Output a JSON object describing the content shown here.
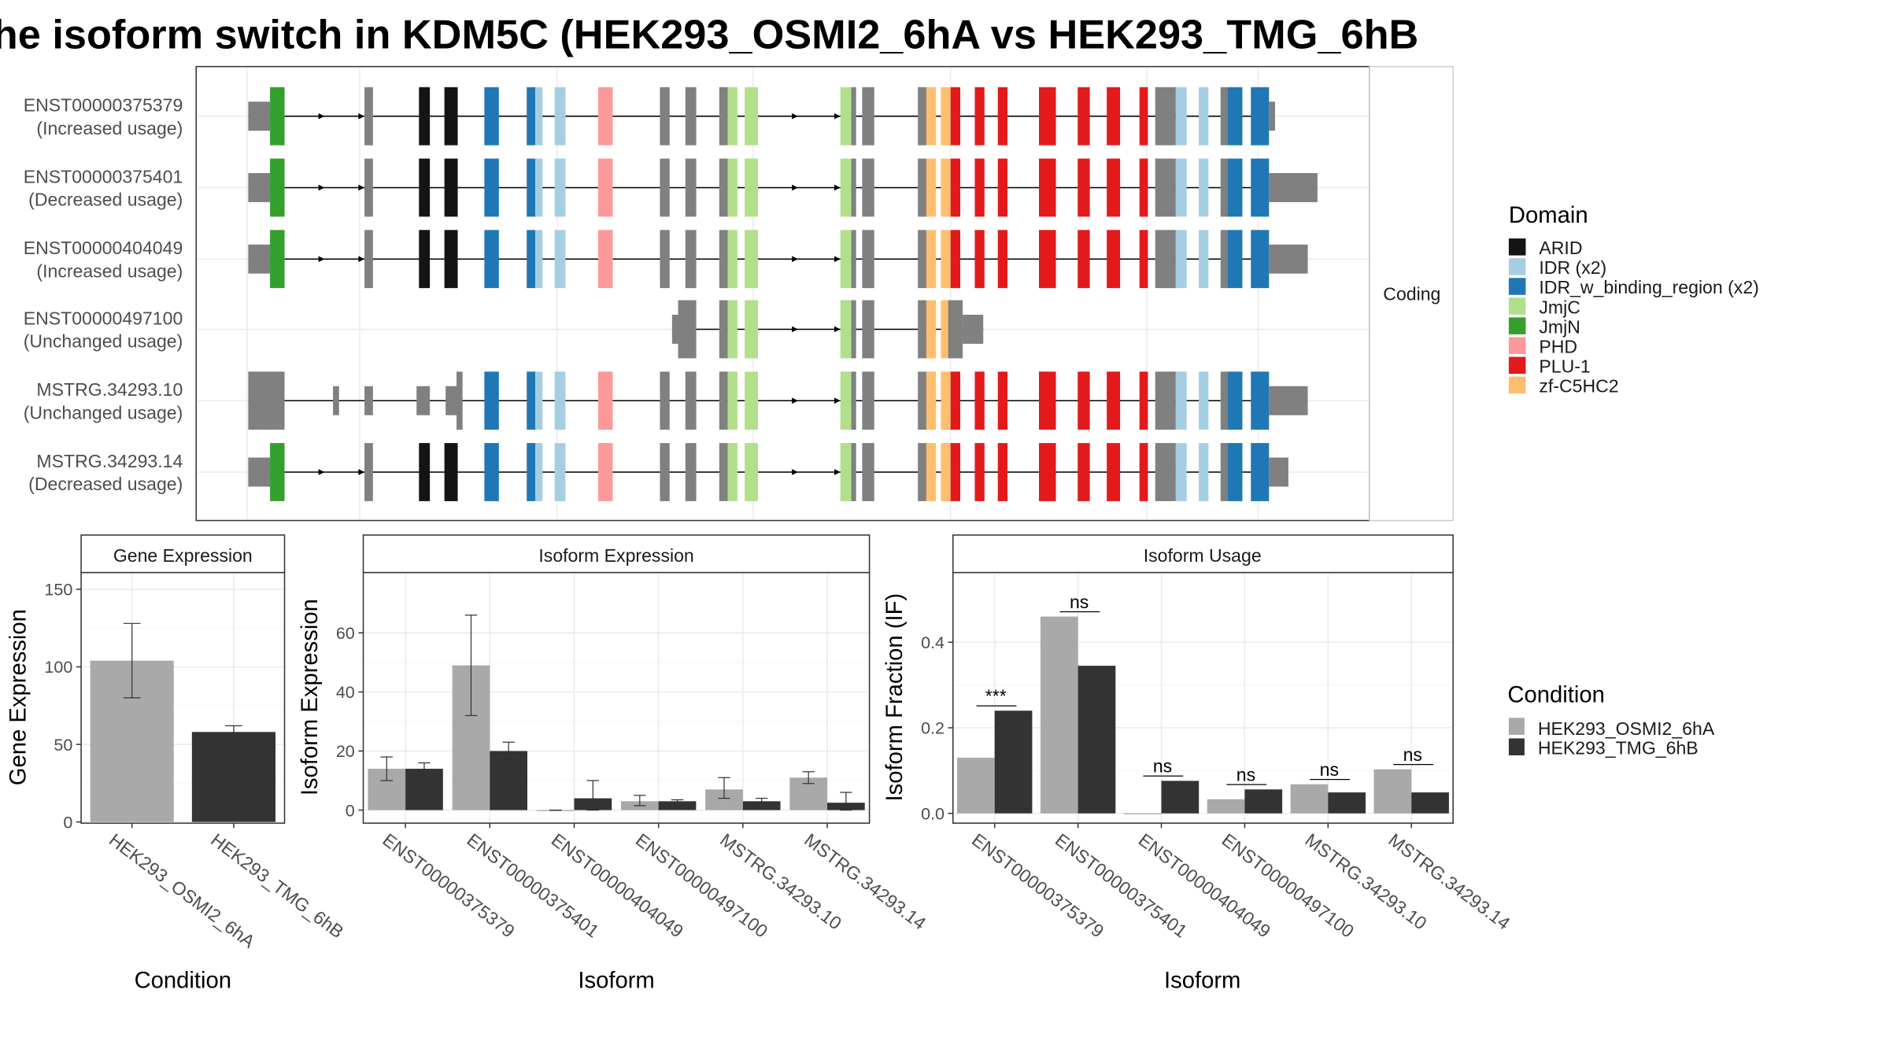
{
  "title": "he isoform switch in KDM5C (HEK293_OSMI2_6hA vs HEK293_TMG_6hB",
  "colors": {
    "cond1": "#a9a9a9",
    "cond2": "#333333",
    "utr": "#808080"
  },
  "structure": {
    "facet_label": "Coding",
    "isoforms": [
      {
        "id": "ENST00000375379",
        "usage": "(Increased usage)"
      },
      {
        "id": "ENST00000375401",
        "usage": "(Decreased usage)"
      },
      {
        "id": "ENST00000404049",
        "usage": "(Increased usage)"
      },
      {
        "id": "ENST00000497100",
        "usage": "(Unchanged usage)"
      },
      {
        "id": "MSTRG.34293.10",
        "usage": "(Unchanged usage)"
      },
      {
        "id": "MSTRG.34293.14",
        "usage": "(Decreased usage)"
      }
    ],
    "domain_legend": {
      "title": "Domain",
      "items": [
        {
          "label": "ARID",
          "color": "#141414"
        },
        {
          "label": "IDR (x2)",
          "color": "#a6cee3"
        },
        {
          "label": "IDR_w_binding_region (x2)",
          "color": "#1f78b4"
        },
        {
          "label": "JmjC",
          "color": "#b2df8a"
        },
        {
          "label": "JmjN",
          "color": "#33a02c"
        },
        {
          "label": "PHD",
          "color": "#fb9a99"
        },
        {
          "label": "PLU-1",
          "color": "#e31a1c"
        },
        {
          "label": "zf-C5HC2",
          "color": "#fdbf6f"
        }
      ]
    }
  },
  "condition_legend": {
    "title": "Condition",
    "items": [
      "HEK293_OSMI2_6hA",
      "HEK293_TMG_6hB"
    ]
  },
  "chart_data": [
    {
      "type": "bar",
      "title": "Gene Expression",
      "xlabel": "Condition",
      "ylabel": "Gene Expression",
      "categories": [
        "HEK293_OSMI2_6hA",
        "HEK293_TMG_6hB"
      ],
      "values": [
        104,
        58
      ],
      "errors": [
        [
          80,
          128
        ],
        [
          55,
          62
        ]
      ],
      "ylim": [
        0,
        160
      ],
      "yticks": [
        0,
        50,
        100,
        150
      ],
      "grid": true
    },
    {
      "type": "bar",
      "title": "Isoform Expression",
      "xlabel": "Isoform",
      "ylabel": "Isoform Expression",
      "categories": [
        "ENST00000375379",
        "ENST00000375401",
        "ENST00000404049",
        "ENST00000497100",
        "MSTRG.34293.10",
        "MSTRG.34293.14"
      ],
      "series": [
        {
          "name": "HEK293_OSMI2_6hA",
          "values": [
            14,
            49,
            0,
            3,
            7,
            11
          ],
          "errors": [
            [
              10,
              18
            ],
            [
              32,
              66
            ],
            [
              0,
              0
            ],
            [
              1.5,
              5
            ],
            [
              4,
              11
            ],
            [
              9,
              13
            ]
          ]
        },
        {
          "name": "HEK293_TMG_6hB",
          "values": [
            14,
            20,
            4,
            3,
            3,
            2.5
          ],
          "errors": [
            [
              12,
              16
            ],
            [
              17,
              23
            ],
            [
              0,
              10
            ],
            [
              2.5,
              3.5
            ],
            [
              2,
              4
            ],
            [
              0,
              6
            ]
          ]
        }
      ],
      "ylim": [
        -4,
        80
      ],
      "yticks": [
        0,
        20,
        40,
        60
      ],
      "grid": true
    },
    {
      "type": "bar",
      "title": "Isoform Usage",
      "xlabel": "Isoform",
      "ylabel": "Isoform Fraction (IF)",
      "categories": [
        "ENST00000375379",
        "ENST00000375401",
        "ENST00000404049",
        "ENST00000497100",
        "MSTRG.34293.10",
        "MSTRG.34293.14"
      ],
      "series": [
        {
          "name": "HEK293_OSMI2_6hA",
          "values": [
            0.13,
            0.46,
            0.0,
            0.033,
            0.068,
            0.103
          ]
        },
        {
          "name": "HEK293_TMG_6hB",
          "values": [
            0.24,
            0.345,
            0.076,
            0.056,
            0.049,
            0.049
          ]
        }
      ],
      "significance": [
        "***",
        "ns",
        "ns",
        "ns",
        "ns",
        "ns"
      ],
      "ylim": [
        -0.02,
        0.56
      ],
      "yticks": [
        0.0,
        0.2,
        0.4
      ],
      "ytick_labels": [
        "0.0",
        "0.2",
        "0.4"
      ],
      "grid": true
    }
  ]
}
